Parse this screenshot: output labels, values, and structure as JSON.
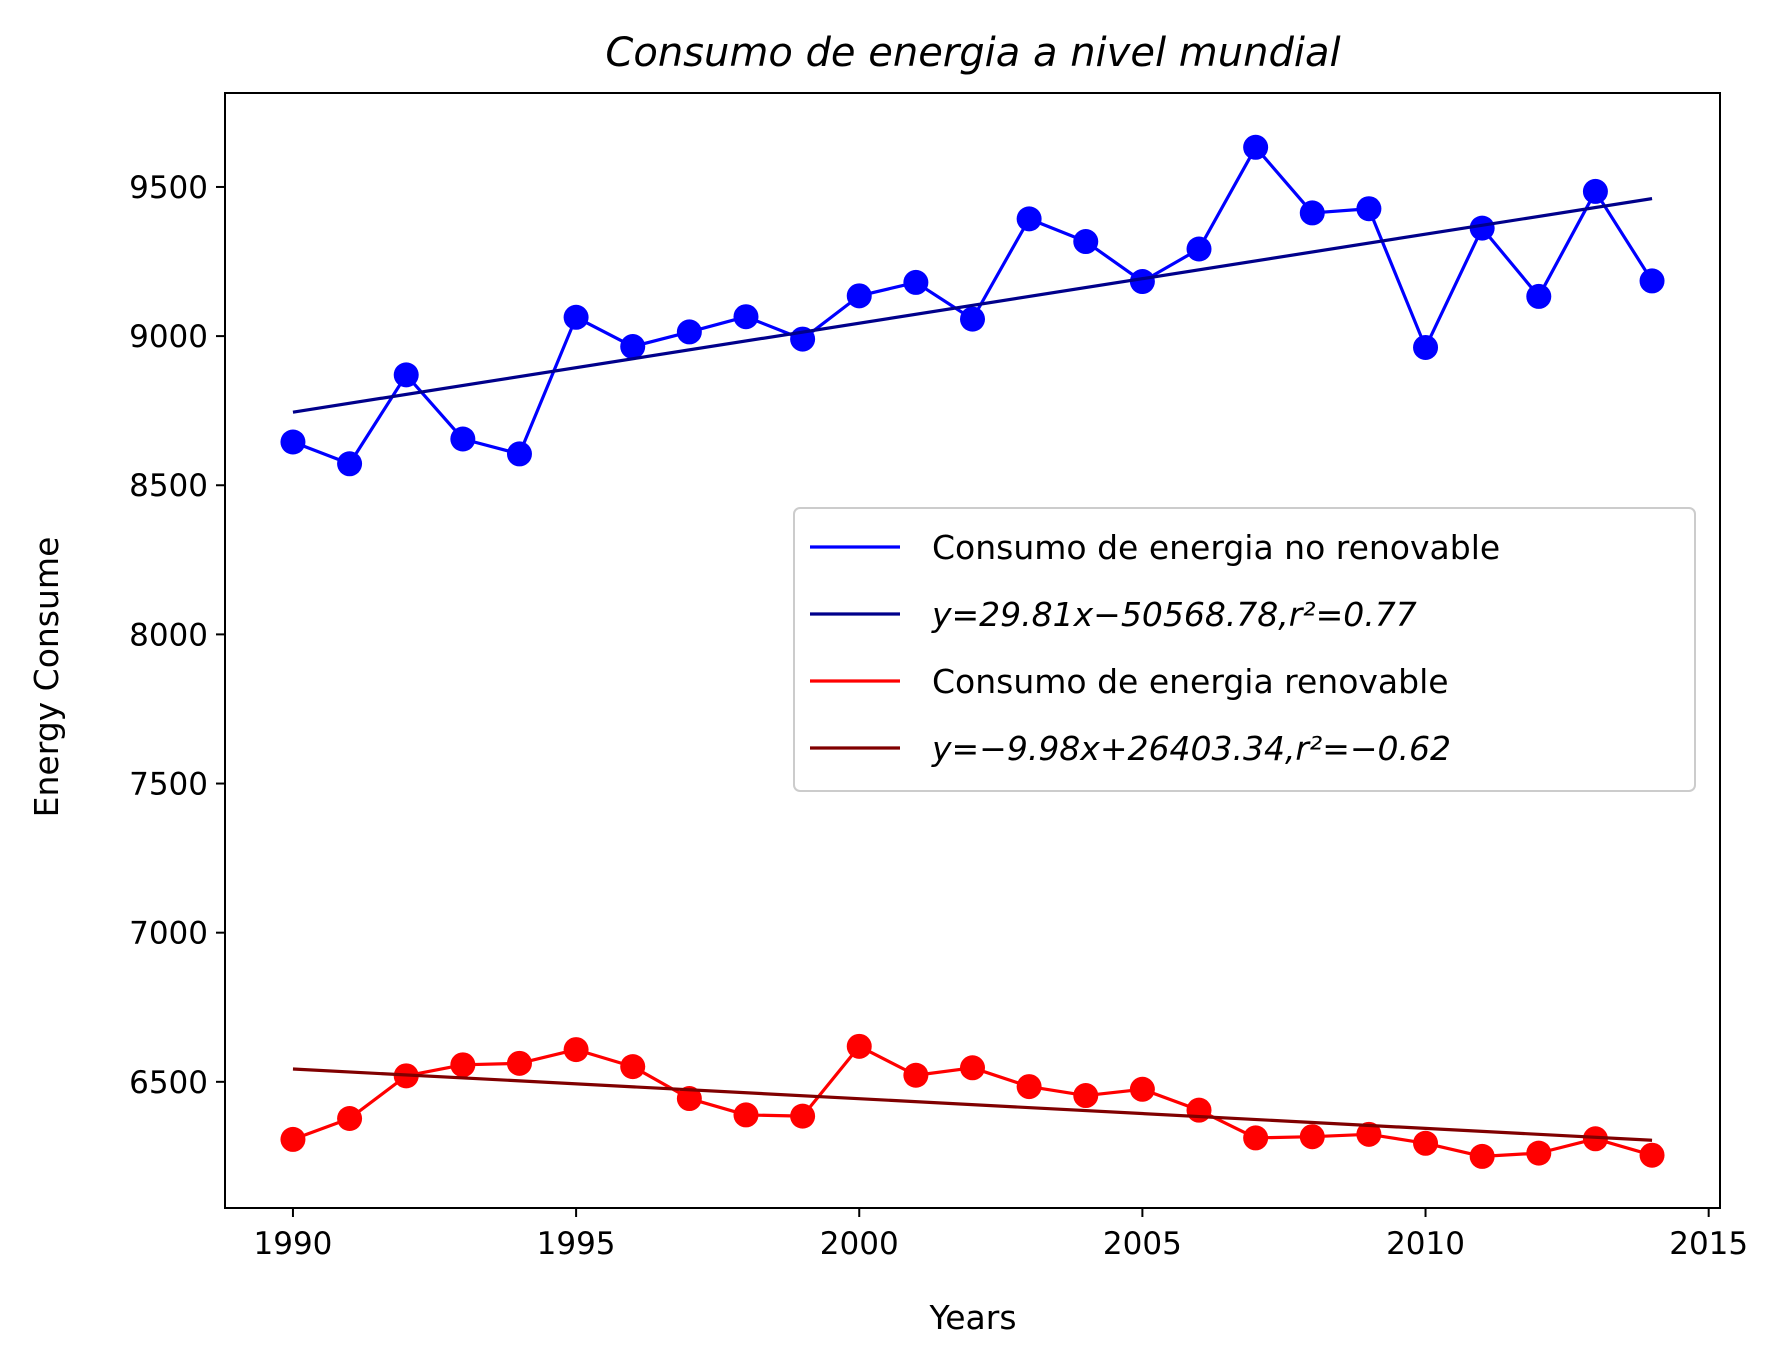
{
  "chart_data": {
    "type": "line",
    "title": "Consumo de energia a nivel mundial",
    "xlabel": "Years",
    "ylabel": "Energy Consume",
    "xlim": [
      1988.8,
      2015.2
    ],
    "ylim": [
      6077,
      9815
    ],
    "xticks": [
      1990,
      1995,
      2000,
      2005,
      2010,
      2015
    ],
    "yticks": [
      6500,
      7000,
      7500,
      8000,
      8500,
      9000,
      9500
    ],
    "x": [
      1990,
      1991,
      1992,
      1993,
      1994,
      1995,
      1996,
      1997,
      1998,
      1999,
      2000,
      2001,
      2002,
      2003,
      2004,
      2005,
      2006,
      2007,
      2008,
      2009,
      2010,
      2011,
      2012,
      2013,
      2014
    ],
    "series": [
      {
        "name": "Consumo de energia no renovable",
        "color": "#0000ff",
        "markers": true,
        "values": [
          8645,
          8572,
          8870,
          8655,
          8605,
          9063,
          8965,
          9014,
          9065,
          8990,
          9135,
          9180,
          9057,
          9393,
          9317,
          9183,
          9292,
          9633,
          9413,
          9427,
          8962,
          9362,
          9133,
          9485,
          9185
        ]
      },
      {
        "name": "Consumo de energia renovable",
        "color": "#ff0000",
        "markers": true,
        "values": [
          6307,
          6377,
          6520,
          6557,
          6562,
          6608,
          6551,
          6444,
          6389,
          6385,
          6619,
          6522,
          6547,
          6484,
          6454,
          6475,
          6405,
          6312,
          6316,
          6324,
          6294,
          6250,
          6261,
          6309,
          6254
        ]
      }
    ],
    "fits": [
      {
        "name": "y=29.81x−50568.78,r²=0.77",
        "color": "#00008b",
        "x": [
          1990,
          2014
        ],
        "values": [
          8745,
          9461
        ]
      },
      {
        "name": "y=−9.98x+26403.34,r²=−0.62",
        "color": "#800000",
        "x": [
          1990,
          2014
        ],
        "values": [
          6543,
          6304
        ]
      }
    ],
    "legend": {
      "placement": "center-right",
      "entries": [
        {
          "label": "Consumo de energia no renovable",
          "color": "#0000ff"
        },
        {
          "label": "y=29.81x−50568.78,r²=0.77",
          "color": "#00008b"
        },
        {
          "label": "Consumo de energia renovable",
          "color": "#ff0000"
        },
        {
          "label": "y=−9.98x+26403.34,r²=−0.62",
          "color": "#800000"
        }
      ]
    },
    "grid": false
  }
}
